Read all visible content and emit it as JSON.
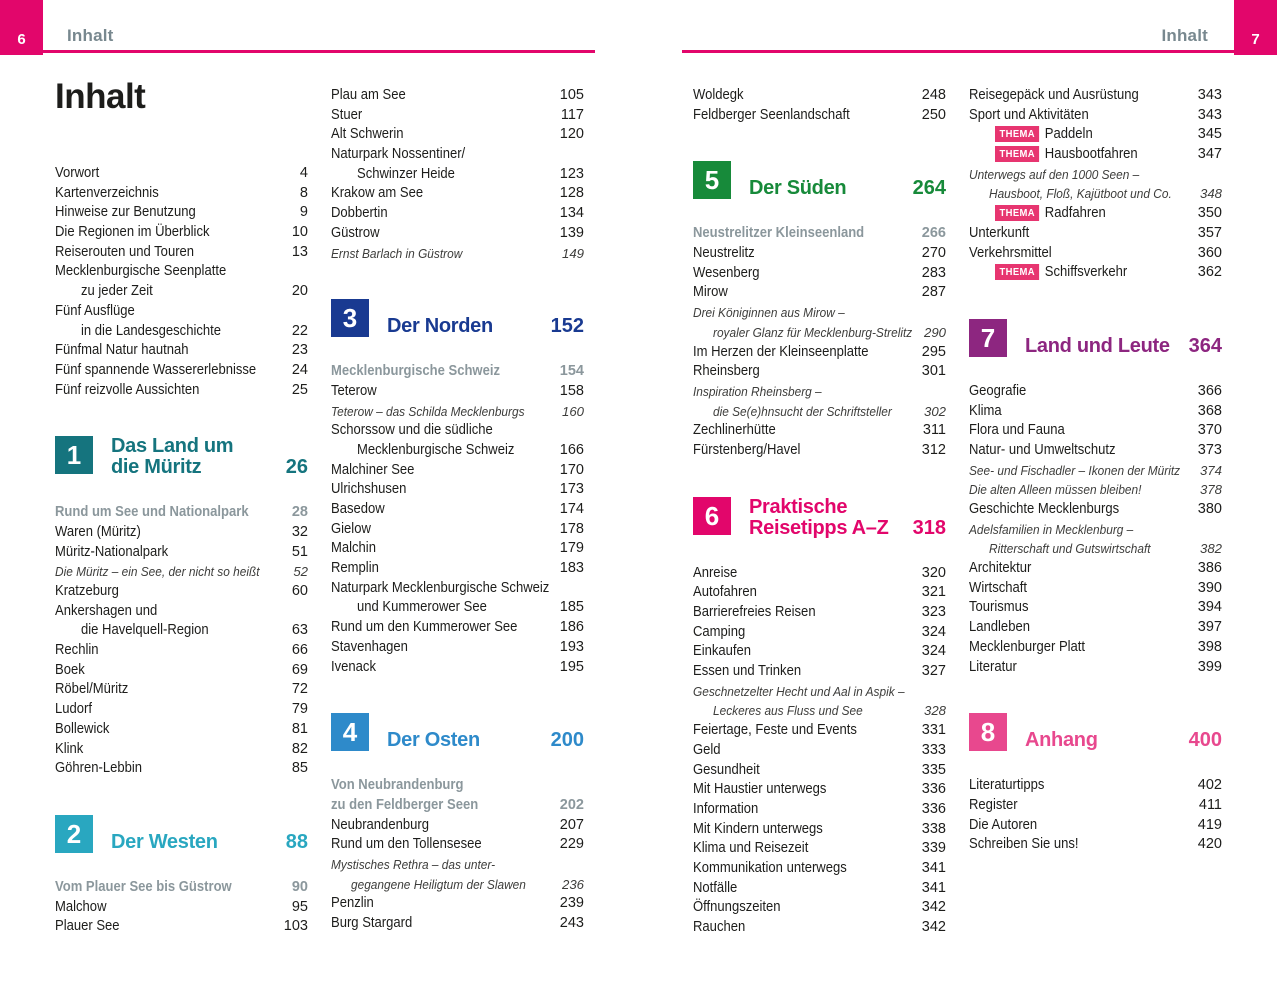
{
  "header": {
    "left": {
      "page_number": "6",
      "label": "Inhalt"
    },
    "right": {
      "page_number": "7",
      "label": "Inhalt"
    }
  },
  "labels": {
    "thema": "THEMA"
  },
  "colors": {
    "accent_pink": "#e2066b",
    "header_text": "#78888f",
    "subhead_text": "#8b979c",
    "thema_badge": "#e73570",
    "sec1": "#15747e",
    "sec2": "#29a7c0",
    "sec3": "#193a91",
    "sec4": "#2e8aca",
    "sec5": "#178a3a",
    "sec6": "#e2066b",
    "sec7": "#8d2680",
    "sec8": "#e8488e"
  },
  "columns": [
    {
      "blocks": [
        {
          "kind": "title",
          "text": "Inhalt"
        },
        {
          "kind": "entries",
          "items": [
            {
              "text": "Vorwort",
              "page": "4"
            },
            {
              "text": "Kartenverzeichnis",
              "page": "8"
            },
            {
              "text": "Hinweise zur Benutzung",
              "page": "9"
            },
            {
              "text": "Die Regionen im Überblick",
              "page": "10"
            },
            {
              "text": "Reiserouten und Touren",
              "page": "13"
            },
            {
              "text": "Mecklenburgische Seenplatte",
              "page": ""
            },
            {
              "text": "zu jeder Zeit",
              "page": "20",
              "indent": true
            },
            {
              "text": "Fünf Ausflüge",
              "page": ""
            },
            {
              "text": "in die Landesgeschichte",
              "page": "22",
              "indent": true
            },
            {
              "text": "Fünfmal Natur hautnah",
              "page": "23"
            },
            {
              "text": "Fünf spannende Wassererlebnisse",
              "page": "24"
            },
            {
              "text": "Fünf reizvolle Aussichten",
              "page": "25"
            }
          ]
        },
        {
          "kind": "section",
          "num": "1",
          "title": [
            "Das Land um",
            "die Müritz"
          ],
          "page": "26",
          "color_key": "sec1"
        },
        {
          "kind": "entries",
          "items": [
            {
              "text": "Rund um See und Nationalpark",
              "page": "28",
              "style": "subhead"
            },
            {
              "text": "Waren (Müritz)",
              "page": "32"
            },
            {
              "text": "Müritz-Nationalpark",
              "page": "51"
            },
            {
              "text": "Die Müritz – ein See, der nicht so heißt",
              "page": "52",
              "style": "italic"
            },
            {
              "text": "Kratzeburg",
              "page": "60"
            },
            {
              "text": "Ankershagen und",
              "page": ""
            },
            {
              "text": "die Havelquell-Region",
              "page": "63",
              "indent": true
            },
            {
              "text": "Rechlin",
              "page": "66"
            },
            {
              "text": "Boek",
              "page": "69"
            },
            {
              "text": "Röbel/Müritz",
              "page": "72"
            },
            {
              "text": "Ludorf",
              "page": "79"
            },
            {
              "text": "Bollewick",
              "page": "81"
            },
            {
              "text": "Klink",
              "page": "82"
            },
            {
              "text": "Göhren-Lebbin",
              "page": "85"
            }
          ]
        },
        {
          "kind": "section",
          "num": "2",
          "title": [
            "Der Westen"
          ],
          "page": "88",
          "color_key": "sec2"
        },
        {
          "kind": "entries",
          "items": [
            {
              "text": "Vom Plauer See bis Güstrow",
              "page": "90",
              "style": "subhead"
            },
            {
              "text": "Malchow",
              "page": "95"
            },
            {
              "text": "Plauer See",
              "page": "103"
            }
          ]
        }
      ]
    },
    {
      "blocks": [
        {
          "kind": "entries",
          "items": [
            {
              "text": "Plau am See",
              "page": "105"
            },
            {
              "text": "Stuer",
              "page": "117"
            },
            {
              "text": "Alt Schwerin",
              "page": "120"
            },
            {
              "text": "Naturpark Nossentiner/",
              "page": ""
            },
            {
              "text": "Schwinzer Heide",
              "page": "123",
              "indent": true
            },
            {
              "text": "Krakow am See",
              "page": "128"
            },
            {
              "text": "Dobbertin",
              "page": "134"
            },
            {
              "text": "Güstrow",
              "page": "139"
            },
            {
              "text": "Ernst Barlach in Güstrow",
              "page": "149",
              "style": "italic"
            }
          ]
        },
        {
          "kind": "section",
          "num": "3",
          "title": [
            "Der Norden"
          ],
          "page": "152",
          "color_key": "sec3"
        },
        {
          "kind": "entries",
          "items": [
            {
              "text": "Mecklenburgische Schweiz",
              "page": "154",
              "style": "subhead"
            },
            {
              "text": "Teterow",
              "page": "158"
            },
            {
              "text": "Teterow – das Schilda Mecklenburgs",
              "page": "160",
              "style": "italic"
            },
            {
              "text": "Schorssow und die südliche",
              "page": ""
            },
            {
              "text": "Mecklenburgische Schweiz",
              "page": "166",
              "indent": true
            },
            {
              "text": "Malchiner See",
              "page": "170"
            },
            {
              "text": "Ulrichshusen",
              "page": "173"
            },
            {
              "text": "Basedow",
              "page": "174"
            },
            {
              "text": "Gielow",
              "page": "178"
            },
            {
              "text": "Malchin",
              "page": "179"
            },
            {
              "text": "Remplin",
              "page": "183"
            },
            {
              "text": "Naturpark Mecklenburgische Schweiz",
              "page": ""
            },
            {
              "text": "und Kummerower See",
              "page": "185",
              "indent": true
            },
            {
              "text": "Rund um den Kummerower See",
              "page": "186"
            },
            {
              "text": "Stavenhagen",
              "page": "193"
            },
            {
              "text": "Ivenack",
              "page": "195"
            }
          ]
        },
        {
          "kind": "section",
          "num": "4",
          "title": [
            "Der Osten"
          ],
          "page": "200",
          "color_key": "sec4"
        },
        {
          "kind": "entries",
          "items": [
            {
              "text": "Von Neubrandenburg",
              "page": "",
              "style": "subhead"
            },
            {
              "text": "zu den Feldberger Seen",
              "page": "202",
              "style": "subhead"
            },
            {
              "text": "Neubrandenburg",
              "page": "207"
            },
            {
              "text": "Rund um den Tollensesee",
              "page": "229"
            },
            {
              "text": "Mystisches Rethra – das unter-",
              "page": "",
              "style": "italic"
            },
            {
              "text": "gegangene Heiligtum der Slawen",
              "page": "236",
              "style": "italic",
              "indent": true
            },
            {
              "text": "Penzlin",
              "page": "239"
            },
            {
              "text": "Burg Stargard",
              "page": "243"
            }
          ]
        }
      ]
    },
    {
      "blocks": [
        {
          "kind": "entries",
          "items": [
            {
              "text": "Woldegk",
              "page": "248"
            },
            {
              "text": "Feldberger Seenlandschaft",
              "page": "250"
            }
          ]
        },
        {
          "kind": "section",
          "num": "5",
          "title": [
            "Der Süden"
          ],
          "page": "264",
          "color_key": "sec5"
        },
        {
          "kind": "entries",
          "items": [
            {
              "text": "Neustrelitzer Kleinseenland",
              "page": "266",
              "style": "subhead"
            },
            {
              "text": "Neustrelitz",
              "page": "270"
            },
            {
              "text": "Wesenberg",
              "page": "283"
            },
            {
              "text": "Mirow",
              "page": "287"
            },
            {
              "text": "Drei Königinnen aus Mirow –",
              "page": "",
              "style": "italic"
            },
            {
              "text": "royaler Glanz für Mecklenburg-Strelitz",
              "page": "290",
              "style": "italic",
              "indent": true
            },
            {
              "text": "Im Herzen der Kleinseenplatte",
              "page": "295"
            },
            {
              "text": "Rheinsberg",
              "page": "301"
            },
            {
              "text": "Inspiration Rheinsberg –",
              "page": "",
              "style": "italic"
            },
            {
              "text": "die Se(e)hnsucht der Schriftsteller",
              "page": "302",
              "style": "italic",
              "indent": true
            },
            {
              "text": "Zechlinerhütte",
              "page": "311"
            },
            {
              "text": "Fürstenberg/Havel",
              "page": "312"
            }
          ]
        },
        {
          "kind": "section",
          "num": "6",
          "title": [
            "Praktische",
            "Reisetipps A–Z"
          ],
          "page": "318",
          "color_key": "sec6"
        },
        {
          "kind": "entries",
          "items": [
            {
              "text": "Anreise",
              "page": "320"
            },
            {
              "text": "Autofahren",
              "page": "321"
            },
            {
              "text": "Barrierefreies Reisen",
              "page": "323"
            },
            {
              "text": "Camping",
              "page": "324"
            },
            {
              "text": "Einkaufen",
              "page": "324"
            },
            {
              "text": "Essen und Trinken",
              "page": "327"
            },
            {
              "text": "Geschnetzelter Hecht und Aal in Aspik –",
              "page": "",
              "style": "italic"
            },
            {
              "text": "Leckeres aus Fluss und See",
              "page": "328",
              "style": "italic",
              "indent": true
            },
            {
              "text": "Feiertage, Feste und Events",
              "page": "331"
            },
            {
              "text": "Geld",
              "page": "333"
            },
            {
              "text": "Gesundheit",
              "page": "335"
            },
            {
              "text": "Mit Haustier unterwegs",
              "page": "336"
            },
            {
              "text": "Information",
              "page": "336"
            },
            {
              "text": "Mit Kindern unterwegs",
              "page": "338"
            },
            {
              "text": "Klima und Reisezeit",
              "page": "339"
            },
            {
              "text": "Kommunikation unterwegs",
              "page": "341"
            },
            {
              "text": "Notfälle",
              "page": "341"
            },
            {
              "text": "Öffnungszeiten",
              "page": "342"
            },
            {
              "text": "Rauchen",
              "page": "342"
            }
          ]
        }
      ]
    },
    {
      "blocks": [
        {
          "kind": "entries",
          "items": [
            {
              "text": "Reisegepäck und Ausrüstung",
              "page": "343"
            },
            {
              "text": "Sport und Aktivitäten",
              "page": "343"
            },
            {
              "text": "Paddeln",
              "page": "345",
              "thema": true,
              "indent": true
            },
            {
              "text": "Hausbootfahren",
              "page": "347",
              "thema": true,
              "indent": true
            },
            {
              "text": "Unterwegs auf den 1000 Seen –",
              "page": "",
              "style": "italic"
            },
            {
              "text": "Hausboot, Floß, Kajütboot und Co.",
              "page": "348",
              "style": "italic",
              "indent": true
            },
            {
              "text": "Radfahren",
              "page": "350",
              "thema": true,
              "indent": true
            },
            {
              "text": "Unterkunft",
              "page": "357"
            },
            {
              "text": "Verkehrsmittel",
              "page": "360"
            },
            {
              "text": "Schiffsverkehr",
              "page": "362",
              "thema": true,
              "indent": true
            }
          ]
        },
        {
          "kind": "section",
          "num": "7",
          "title": [
            "Land und Leute"
          ],
          "page": "364",
          "color_key": "sec7"
        },
        {
          "kind": "entries",
          "items": [
            {
              "text": "Geografie",
              "page": "366"
            },
            {
              "text": "Klima",
              "page": "368"
            },
            {
              "text": "Flora und Fauna",
              "page": "370"
            },
            {
              "text": "Natur- und Umweltschutz",
              "page": "373"
            },
            {
              "text": "See- und Fischadler – Ikonen der Müritz",
              "page": "374",
              "style": "italic"
            },
            {
              "text": "Die alten Alleen müssen bleiben!",
              "page": "378",
              "style": "italic"
            },
            {
              "text": "Geschichte Mecklenburgs",
              "page": "380"
            },
            {
              "text": "Adelsfamilien in Mecklenburg –",
              "page": "",
              "style": "italic"
            },
            {
              "text": "Ritterschaft und Gutswirtschaft",
              "page": "382",
              "style": "italic",
              "indent": true
            },
            {
              "text": "Architektur",
              "page": "386"
            },
            {
              "text": "Wirtschaft",
              "page": "390"
            },
            {
              "text": "Tourismus",
              "page": "394"
            },
            {
              "text": "Landleben",
              "page": "397"
            },
            {
              "text": "Mecklenburger Platt",
              "page": "398"
            },
            {
              "text": "Literatur",
              "page": "399"
            }
          ]
        },
        {
          "kind": "section",
          "num": "8",
          "title": [
            "Anhang"
          ],
          "page": "400",
          "color_key": "sec8"
        },
        {
          "kind": "entries",
          "items": [
            {
              "text": "Literaturtipps",
              "page": "402"
            },
            {
              "text": "Register",
              "page": "411"
            },
            {
              "text": "Die Autoren",
              "page": "419"
            },
            {
              "text": "Schreiben Sie uns!",
              "page": "420"
            }
          ]
        }
      ]
    }
  ]
}
